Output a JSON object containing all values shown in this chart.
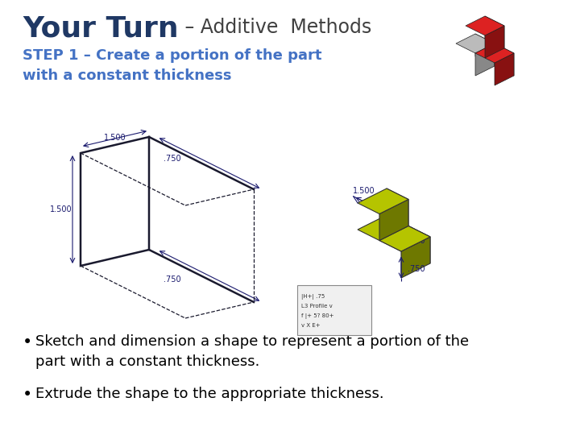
{
  "title_part1": "Your Turn",
  "title_dash": " – ",
  "title_part2": "Additive  Methods",
  "subtitle": "STEP 1 – Create a portion of the part\nwith a constant thickness",
  "bullet1_line1": "Sketch and dimension a shape to represent a portion of the",
  "bullet1_line2": "part with a constant thickness.",
  "bullet2": "Extrude the shape to the appropriate thickness.",
  "bg_color": "#ffffff",
  "title_color1": "#1F3864",
  "title_color2": "#404040",
  "subtitle_color": "#4472C4",
  "bullet_color": "#000000",
  "title_fontsize": 26,
  "subtitle_fontsize": 13,
  "bullet_fontsize": 13,
  "dim_label_color": "#1a1a6e",
  "sketch_line_color": "#1a1a2e",
  "part_top_color": "#b5c400",
  "part_front_color": "#8a9400",
  "part_side_color": "#6e7800",
  "part_edge_color": "#333333",
  "logo_red": "#cc1111",
  "logo_red_dark": "#881111",
  "logo_red_top": "#dd2222",
  "logo_gray": "#aaaaaa",
  "logo_gray_dark": "#888888",
  "logo_gray_top": "#bbbbbb"
}
